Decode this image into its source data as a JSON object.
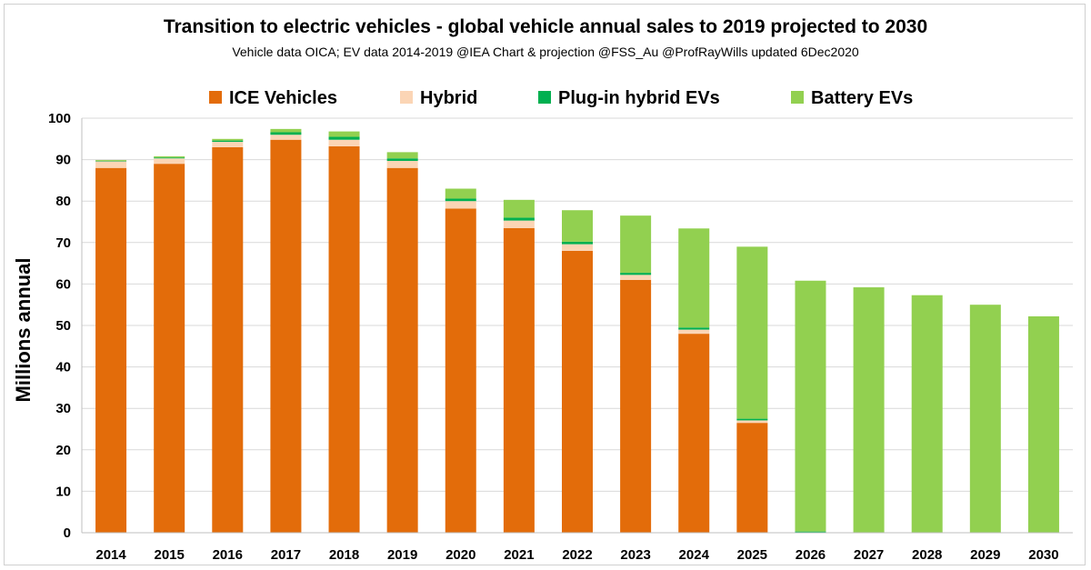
{
  "chart_data": {
    "type": "bar",
    "stacked": true,
    "title": "Transition to electric vehicles  - global vehicle annual sales to 2019 projected to 2030",
    "subtitle": "Vehicle data OICA; EV data 2014-2019 @IEA  Chart & projection @FSS_Au  @ProfRayWills updated 6Dec2020",
    "xlabel": "",
    "ylabel": "Millions annual",
    "ylim": [
      0,
      100
    ],
    "yticks": [
      "0",
      "10",
      "20",
      "30",
      "40",
      "50",
      "60",
      "70",
      "80",
      "90",
      "100"
    ],
    "grid": true,
    "legend_position": "top",
    "categories": [
      "2014",
      "2015",
      "2016",
      "2017",
      "2018",
      "2019",
      "2020",
      "2021",
      "2022",
      "2023",
      "2024",
      "2025",
      "2026",
      "2027",
      "2028",
      "2029",
      "2030"
    ],
    "series": [
      {
        "name": "ICE Vehicles",
        "color": "#e36c0a",
        "values": [
          88.0,
          89.0,
          93.0,
          94.8,
          93.2,
          88.0,
          78.2,
          73.5,
          68.0,
          61.0,
          48.0,
          26.5,
          0,
          0,
          0,
          0,
          0
        ]
      },
      {
        "name": "Hybrid",
        "color": "#fbd5b5",
        "values": [
          1.6,
          1.3,
          1.3,
          1.2,
          1.6,
          1.7,
          1.8,
          1.8,
          1.6,
          1.2,
          1.0,
          0.6,
          0,
          0,
          0,
          0,
          0
        ]
      },
      {
        "name": "Plug-in hybrid EVs",
        "color": "#00b050",
        "values": [
          0.1,
          0.2,
          0.3,
          0.6,
          0.7,
          0.6,
          0.6,
          0.7,
          0.6,
          0.5,
          0.5,
          0.4,
          0.3,
          0,
          0,
          0,
          0
        ]
      },
      {
        "name": "Battery EVs",
        "color": "#92d050",
        "values": [
          0.2,
          0.3,
          0.4,
          0.8,
          1.3,
          1.5,
          2.4,
          4.3,
          7.6,
          13.8,
          23.9,
          41.5,
          60.5,
          59.2,
          57.3,
          55.0,
          52.2
        ]
      }
    ]
  }
}
